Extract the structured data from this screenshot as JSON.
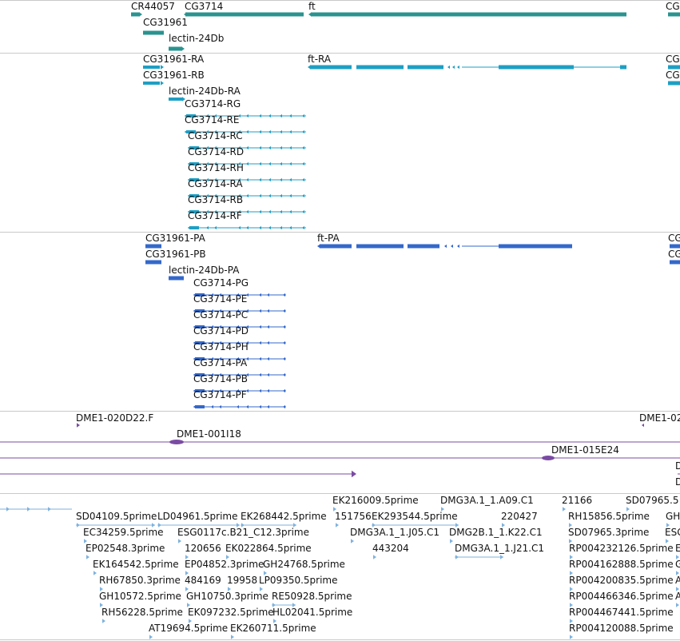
{
  "colors": {
    "gene": "#2a9390",
    "transcript": "#1e9fc4",
    "protein": "#3468cb",
    "clone": "#7a4ba3",
    "est": "#7fb2dd",
    "divider": "#c9c9c9"
  },
  "tracks": {
    "genes": {
      "labels": [
        "CR44057",
        "CG3714",
        "ft",
        "CG3",
        "CG31961",
        "lectin-24Db"
      ]
    },
    "transcripts": {
      "labels": [
        "CG31961-RA",
        "ft-RA",
        "CG2",
        "CG31961-RB",
        "CG2",
        "lectin-24Db-RA",
        "CG3714-RG",
        "CG3714-RE",
        "CG3714-RC",
        "CG3714-RD",
        "CG3714-RH",
        "CG3714-RA",
        "CG3714-RB",
        "CG3714-RF"
      ]
    },
    "proteins": {
      "labels": [
        "CG31961-PA",
        "ft-PA",
        "CG",
        "CG31961-PB",
        "CG",
        "lectin-24Db-PA",
        "CG3714-PG",
        "CG3714-PE",
        "CG3714-PC",
        "CG3714-PD",
        "CG3714-PH",
        "CG3714-PA",
        "CG3714-PB",
        "CG3714-PF"
      ]
    },
    "clones": {
      "labels": [
        "DME1-020D22.F",
        "DME1-02",
        "DME1-001I18",
        "DME1-015E24",
        "D",
        "D"
      ]
    },
    "ests": {
      "labels": [
        "EK216009.5prime",
        "DMG3A.1_1.A09.C1",
        "21166",
        "SD07965.5",
        "SD04109.5prime",
        "LD04961.5prime",
        "EK268442.5prime",
        "151756",
        "EK293544.5prime",
        "220427",
        "RH15856.5prime",
        "GH",
        "EC34259.5prime",
        "ESG0117c.B21_C12.3prime",
        "DMG3A.1_1.J05.C1",
        "DMG2B.1_1.K22.C1",
        "SD07965.3prime",
        "ESG",
        "EP02548.3prime",
        "120656",
        "EK022864.5prime",
        "443204",
        "DMG3A.1_1.J21.C1",
        "RP004232126.5prime",
        "E",
        "EK164542.5prime",
        "EP04852.3prime",
        "GH24768.5prime",
        "RP004162888.5prime",
        "G",
        "RH67850.3prime",
        "484169",
        "19958",
        "LP09350.5prime",
        "RP004200835.5prime",
        "A",
        "GH10572.5prime",
        "GH10750.3prime",
        "RE50928.5prime",
        "RP004466346.5prime",
        "A",
        "RH56228.5prime",
        "EK097232.5prime",
        "HL02041.5prime",
        "RP004467441.5prime",
        "AT19694.5prime",
        "EK260711.5prime",
        "RP004120088.5prime"
      ]
    }
  }
}
